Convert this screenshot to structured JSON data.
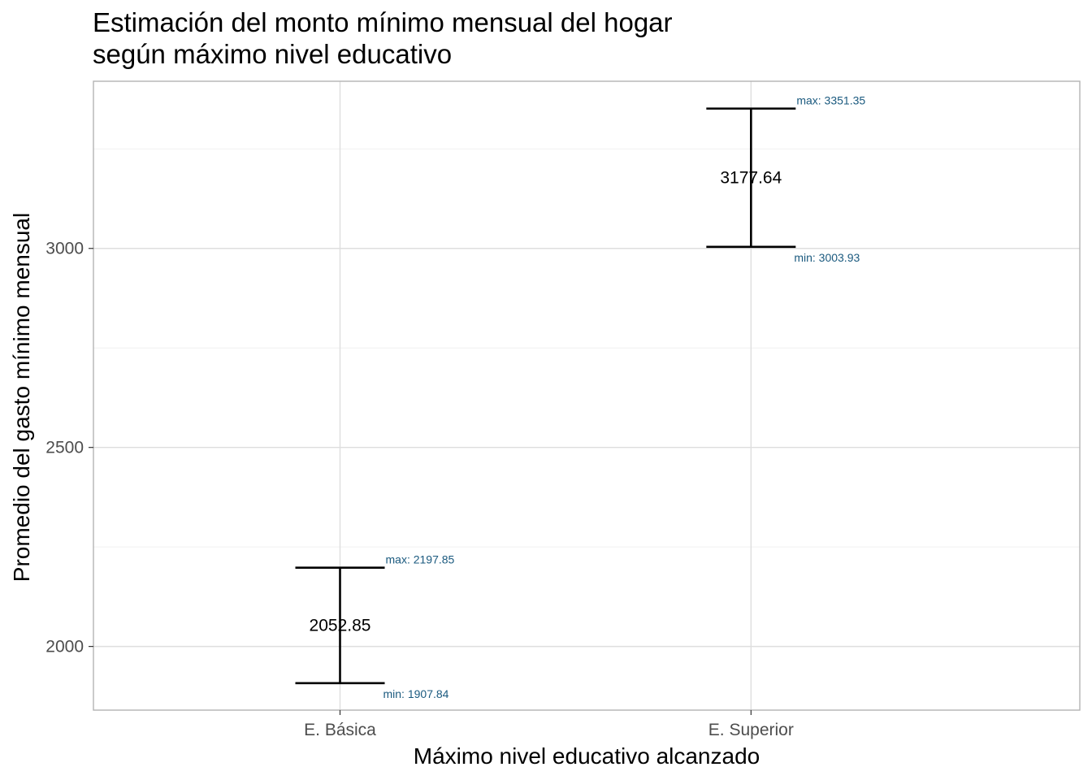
{
  "chart_data": {
    "type": "errorbar",
    "title": "Estimación del monto mínimo mensual del hogar\nsegún máximo nivel educativo",
    "xlabel": "Máximo nivel educativo alcanzado",
    "ylabel": "Promedio del gasto mínimo mensual",
    "categories": [
      "E. Básica",
      "E. Superior"
    ],
    "mean": [
      2052.85,
      3177.64
    ],
    "min": [
      1907.84,
      3003.93
    ],
    "max": [
      2197.85,
      3351.35
    ],
    "mean_labels": [
      "2052.85",
      "3177.64"
    ],
    "min_labels": [
      "min: 1907.84",
      "min: 3003.93"
    ],
    "max_labels": [
      "max: 2197.85",
      "max: 3351.35"
    ],
    "yticks": [
      2000,
      2500,
      3000
    ],
    "ytick_labels": [
      "2000",
      "2500",
      "3000"
    ],
    "ylim": [
      1840,
      3420
    ],
    "grid": true,
    "legend": "none",
    "colors": {
      "errorbar": "#000000",
      "bound_label": "#1b5a7f",
      "grid": "#dedede",
      "border": "#b3b3b3",
      "tick_label": "#4d4d4d"
    }
  }
}
